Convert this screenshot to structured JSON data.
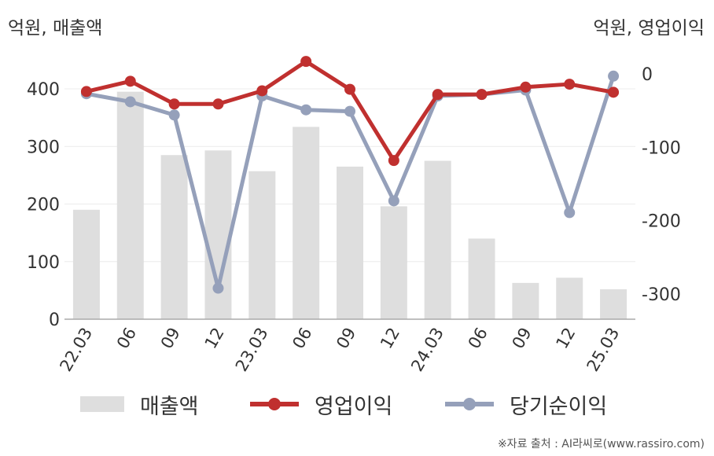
{
  "units": {
    "left": "억원, 매출액",
    "right": "억원, 영업이익"
  },
  "chart_data": {
    "type": "bar",
    "categories": [
      "22.03",
      "06",
      "09",
      "12",
      "23.03",
      "06",
      "09",
      "12",
      "24.03",
      "06",
      "09",
      "12",
      "25.03"
    ],
    "y_left": {
      "ticks": [
        0,
        100,
        200,
        300,
        400
      ],
      "ylim": [
        0,
        460
      ]
    },
    "y_right": {
      "ticks": [
        0,
        -100,
        -200,
        -300
      ],
      "ylim": [
        -335,
        20
      ]
    },
    "series": [
      {
        "name": "매출액",
        "type": "bar",
        "axis": "left",
        "color": "#dedede",
        "values": [
          190,
          395,
          285,
          293,
          257,
          334,
          265,
          196,
          275,
          140,
          63,
          72,
          52
        ]
      },
      {
        "name": "영업이익",
        "type": "line",
        "axis": "right",
        "color": "#c0302f",
        "values": [
          -24,
          -10,
          -41,
          -41,
          -23,
          17,
          -21,
          -118,
          -28,
          -28,
          -18,
          -14,
          -25
        ]
      },
      {
        "name": "당기순이익",
        "type": "line",
        "axis": "right",
        "color": "#95a0ba",
        "values": [
          -27,
          -38,
          -56,
          -292,
          -30,
          -49,
          -51,
          -173,
          -30,
          -28,
          -22,
          -189,
          -3
        ]
      }
    ],
    "grid": true,
    "legend_position": "bottom"
  },
  "source": "※자료 출처 : AI라씨로(www.rassiro.com)"
}
